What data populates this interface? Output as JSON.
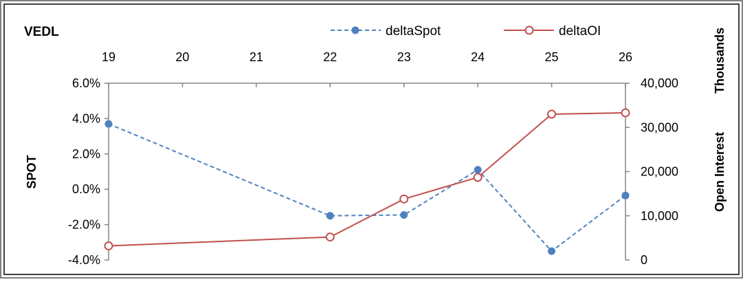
{
  "chart_data": {
    "type": "line",
    "title": "VEDL",
    "x_ticks": [
      "19",
      "20",
      "21",
      "22",
      "23",
      "24",
      "25",
      "26"
    ],
    "ylabel_left": "SPOT",
    "ylabel_right": "Open Interest",
    "right_units": "Thousands",
    "y_left": {
      "min": -0.04,
      "max": 0.06,
      "ticks": [
        "-4.0%",
        "-2.0%",
        "0.0%",
        "2.0%",
        "4.0%",
        "6.0%"
      ]
    },
    "y_right": {
      "min": 0,
      "max": 40000,
      "ticks": [
        "0",
        "10,000",
        "20,000",
        "30,000",
        "40,000"
      ]
    },
    "legend_position": "top",
    "series": [
      {
        "name": "deltaSpot",
        "axis": "left",
        "color": "#4f81bd",
        "style": "dashed",
        "marker": "filled-circle",
        "points": [
          [
            19,
            0.037
          ],
          [
            22,
            -0.015
          ],
          [
            23,
            -0.0145
          ],
          [
            24,
            0.011
          ],
          [
            25,
            -0.035
          ],
          [
            26,
            -0.0035
          ]
        ]
      },
      {
        "name": "deltaOI",
        "axis": "right",
        "color": "#c0504d",
        "style": "solid",
        "marker": "hollow-circle",
        "points": [
          [
            19,
            3200
          ],
          [
            22,
            5200
          ],
          [
            23,
            13800
          ],
          [
            24,
            18700
          ],
          [
            25,
            33000
          ],
          [
            26,
            33300
          ]
        ]
      }
    ]
  }
}
